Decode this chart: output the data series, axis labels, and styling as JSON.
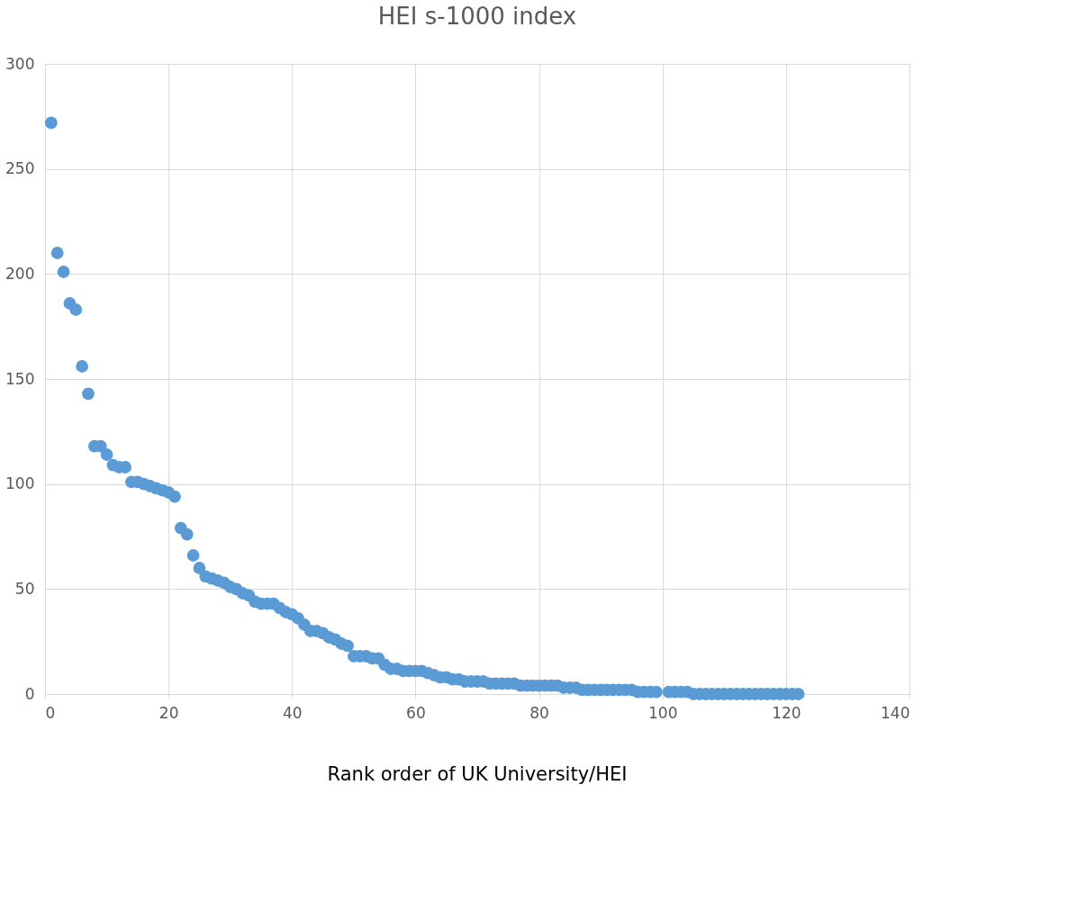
{
  "chart_data": {
    "type": "scatter",
    "title": "HEI s-1000 index",
    "xlabel": "Rank order of UK University/HEI",
    "x": [
      1,
      2,
      3,
      4,
      5,
      6,
      7,
      8,
      9,
      10,
      11,
      12,
      13,
      14,
      15,
      16,
      17,
      18,
      19,
      20,
      21,
      22,
      23,
      24,
      25,
      26,
      27,
      28,
      29,
      30,
      31,
      32,
      33,
      34,
      35,
      36,
      37,
      38,
      39,
      40,
      41,
      42,
      43,
      44,
      45,
      46,
      47,
      48,
      49,
      50,
      51,
      52,
      53,
      54,
      55,
      56,
      57,
      58,
      59,
      60,
      61,
      62,
      63,
      64,
      65,
      66,
      67,
      68,
      69,
      70,
      71,
      72,
      73,
      74,
      75,
      76,
      77,
      78,
      79,
      80,
      81,
      82,
      83,
      84,
      85,
      86,
      87,
      88,
      89,
      90,
      91,
      92,
      93,
      94,
      95,
      96,
      97,
      98,
      99,
      101,
      102,
      103,
      104,
      105,
      106,
      107,
      108,
      109,
      110,
      111,
      112,
      113,
      114,
      115,
      116,
      117,
      118,
      119,
      120,
      121,
      122
    ],
    "series": [
      {
        "color": "#5b9bd5",
        "values": [
          272,
          210,
          201,
          186,
          183,
          156,
          143,
          118,
          118,
          114,
          109,
          108,
          108,
          101,
          101,
          100,
          99,
          98,
          97,
          96,
          94,
          79,
          76,
          66,
          60,
          56,
          55,
          54,
          53,
          51,
          50,
          48,
          47,
          44,
          43,
          43,
          43,
          41,
          39,
          38,
          36,
          33,
          30,
          30,
          29,
          27,
          26,
          24,
          23,
          18,
          18,
          18,
          17,
          17,
          14,
          12,
          12,
          11,
          11,
          11,
          11,
          10,
          9,
          8,
          8,
          7,
          7,
          6,
          6,
          6,
          6,
          5,
          5,
          5,
          5,
          5,
          4,
          4,
          4,
          4,
          4,
          4,
          4,
          3,
          3,
          3,
          2,
          2,
          2,
          2,
          2,
          2,
          2,
          2,
          2,
          1,
          1,
          1,
          1,
          1,
          1,
          1,
          1,
          0,
          0,
          0,
          0,
          0,
          0,
          0,
          0,
          0,
          0,
          0,
          0,
          0,
          0,
          0,
          0,
          0,
          0
        ]
      }
    ],
    "xlim": [
      0,
      140
    ],
    "ylim": [
      0,
      300
    ],
    "xticks": [
      0,
      20,
      40,
      60,
      80,
      100,
      120,
      140
    ],
    "yticks": [
      0,
      50,
      100,
      150,
      200,
      250,
      300
    ],
    "grid": true,
    "marker": "circle"
  }
}
